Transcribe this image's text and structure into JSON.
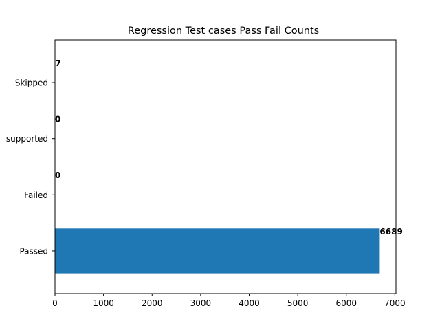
{
  "chart_data": {
    "type": "bar",
    "orientation": "horizontal",
    "title": "Regression Test cases Pass Fail Counts",
    "xlabel": "",
    "ylabel": "",
    "categories": [
      "Passed",
      "Failed",
      "Unsupported",
      "Skipped"
    ],
    "category_labels_visible": [
      "Passed",
      "Failed",
      "supported",
      "Skipped"
    ],
    "values": [
      6689,
      0,
      0,
      7
    ],
    "data_labels": [
      "6689",
      "0",
      "0",
      "7"
    ],
    "xlim": [
      0,
      7023
    ],
    "xticks": [
      0,
      1000,
      2000,
      3000,
      4000,
      5000,
      6000,
      7000
    ],
    "xtick_labels": [
      "0",
      "1000",
      "2000",
      "3000",
      "4000",
      "5000",
      "6000",
      "7000"
    ],
    "grid": false,
    "bar_color": "#1f77b4"
  }
}
